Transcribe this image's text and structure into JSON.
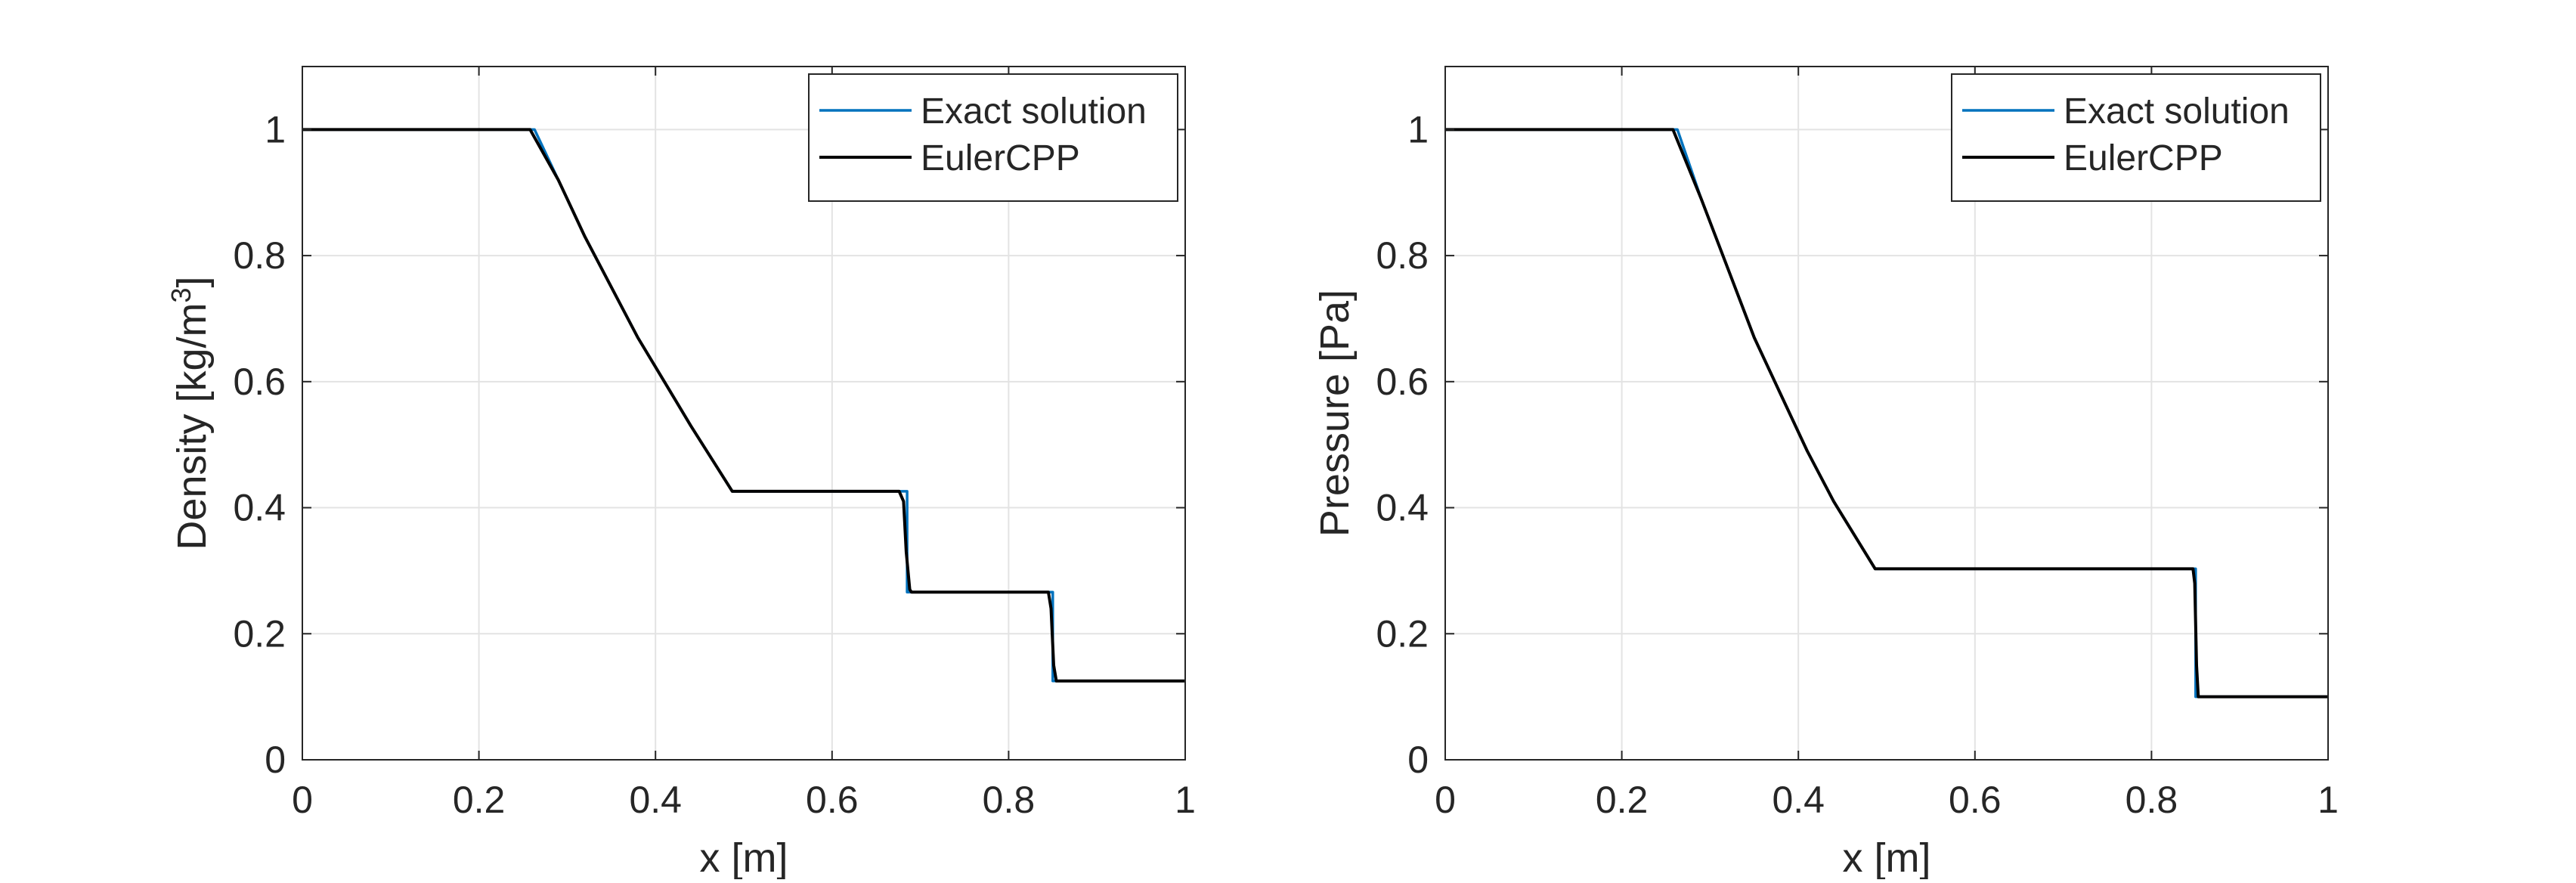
{
  "chart_data": [
    {
      "type": "line",
      "title": "",
      "xlabel": "x [m]",
      "ylabel": "Density  [kg/m",
      "ylabel_sup": "3",
      "ylabel_close": "]",
      "xlim": [
        0,
        1
      ],
      "ylim": [
        0,
        1.1
      ],
      "xticks": [
        0,
        0.2,
        0.4,
        0.6,
        0.8,
        1
      ],
      "xtick_labels": [
        "0",
        "0.2",
        "0.4",
        "0.6",
        "0.8",
        "1"
      ],
      "yticks": [
        0,
        0.2,
        0.4,
        0.6,
        0.8,
        1
      ],
      "ytick_labels": [
        "0",
        "0.2",
        "0.4",
        "0.6",
        "0.8",
        "1"
      ],
      "grid": true,
      "legend_position": "top-right",
      "series": [
        {
          "name": "Exact solution",
          "color": "#0072BD",
          "x": [
            0,
            0.263,
            0.29,
            0.32,
            0.35,
            0.38,
            0.41,
            0.44,
            0.487,
            0.685,
            0.685,
            0.85,
            0.85,
            1
          ],
          "y": [
            1,
            1,
            0.92,
            0.83,
            0.75,
            0.67,
            0.6,
            0.53,
            0.426,
            0.426,
            0.266,
            0.266,
            0.125,
            0.125
          ]
        },
        {
          "name": "EulerCPP",
          "color": "#000000",
          "x": [
            0,
            0.258,
            0.29,
            0.32,
            0.35,
            0.38,
            0.41,
            0.44,
            0.487,
            0.676,
            0.681,
            0.684,
            0.688,
            0.69,
            0.845,
            0.848,
            0.851,
            0.854,
            1
          ],
          "y": [
            1,
            1,
            0.92,
            0.83,
            0.75,
            0.67,
            0.6,
            0.53,
            0.426,
            0.426,
            0.41,
            0.33,
            0.27,
            0.266,
            0.266,
            0.24,
            0.15,
            0.125,
            0.125
          ]
        }
      ]
    },
    {
      "type": "line",
      "title": "",
      "xlabel": "x [m]",
      "ylabel": "Pressure [Pa]",
      "xlim": [
        0,
        1
      ],
      "ylim": [
        0,
        1.1
      ],
      "xticks": [
        0,
        0.2,
        0.4,
        0.6,
        0.8,
        1
      ],
      "xtick_labels": [
        "0",
        "0.2",
        "0.4",
        "0.6",
        "0.8",
        "1"
      ],
      "yticks": [
        0,
        0.2,
        0.4,
        0.6,
        0.8,
        1
      ],
      "ytick_labels": [
        "0",
        "0.2",
        "0.4",
        "0.6",
        "0.8",
        "1"
      ],
      "grid": true,
      "legend_position": "top-right",
      "series": [
        {
          "name": "Exact solution",
          "color": "#0072BD",
          "x": [
            0,
            0.263,
            0.29,
            0.32,
            0.35,
            0.38,
            0.41,
            0.44,
            0.487,
            0.85,
            0.85,
            1
          ],
          "y": [
            1,
            1,
            0.89,
            0.78,
            0.67,
            0.58,
            0.49,
            0.41,
            0.303,
            0.303,
            0.1,
            0.1
          ]
        },
        {
          "name": "EulerCPP",
          "color": "#000000",
          "x": [
            0,
            0.258,
            0.29,
            0.32,
            0.35,
            0.38,
            0.41,
            0.44,
            0.487,
            0.847,
            0.849,
            0.851,
            0.853,
            1
          ],
          "y": [
            1,
            1,
            0.89,
            0.78,
            0.67,
            0.58,
            0.49,
            0.41,
            0.303,
            0.303,
            0.28,
            0.15,
            0.1,
            0.1
          ]
        }
      ]
    }
  ]
}
